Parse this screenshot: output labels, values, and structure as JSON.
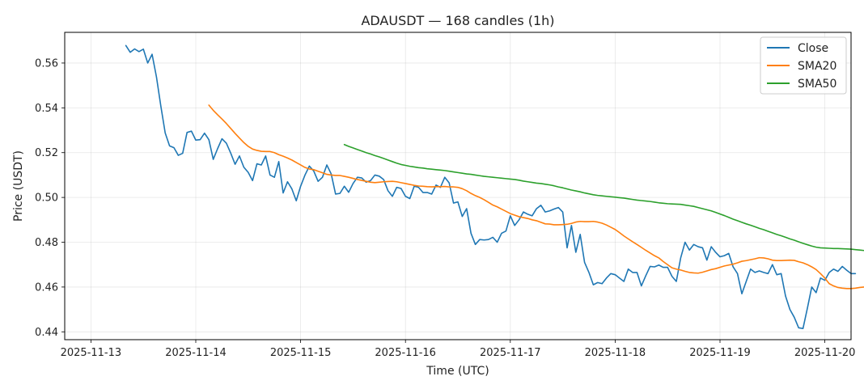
{
  "chart_data": {
    "type": "line",
    "title": "ADAUSDT — 168 candles (1h)",
    "xlabel": "Time (UTC)",
    "ylabel": "Price (USDT)",
    "x_tick_labels": [
      "2025-11-13",
      "2025-11-14",
      "2025-11-15",
      "2025-11-16",
      "2025-11-17",
      "2025-11-18",
      "2025-11-19",
      "2025-11-20"
    ],
    "y_tick_labels": [
      "0.44",
      "0.46",
      "0.48",
      "0.50",
      "0.52",
      "0.54",
      "0.56"
    ],
    "y_ticks": [
      0.44,
      0.46,
      0.48,
      0.5,
      0.52,
      0.54,
      0.56
    ],
    "xlim_days": [
      -0.25,
      7.25
    ],
    "ylim": [
      0.4365,
      0.5737
    ],
    "grid": true,
    "legend_position": "top-right",
    "legend": [
      "Close",
      "SMA20",
      "SMA50"
    ],
    "colors": {
      "Close": "#1f77b4",
      "SMA20": "#ff7f0e",
      "SMA50": "#2ca02c"
    },
    "series": [
      {
        "name": "Close",
        "color": "#1f77b4",
        "start_day": 0.333333,
        "step_hours": 1,
        "values": [
          0.5678,
          0.5648,
          0.5663,
          0.5651,
          0.5662,
          0.56,
          0.5639,
          0.5538,
          0.5408,
          0.5288,
          0.523,
          0.5222,
          0.5188,
          0.5197,
          0.529,
          0.5296,
          0.5256,
          0.5258,
          0.5287,
          0.5258,
          0.517,
          0.5218,
          0.5262,
          0.5242,
          0.5198,
          0.5148,
          0.5185,
          0.5135,
          0.5112,
          0.5075,
          0.515,
          0.5145,
          0.5185,
          0.51,
          0.509,
          0.516,
          0.502,
          0.507,
          0.5038,
          0.4985,
          0.505,
          0.51,
          0.514,
          0.5118,
          0.5072,
          0.509,
          0.5145,
          0.5105,
          0.5015,
          0.5018,
          0.505,
          0.5023,
          0.5062,
          0.509,
          0.5087,
          0.5068,
          0.5075,
          0.51,
          0.5095,
          0.508,
          0.503,
          0.5005,
          0.5045,
          0.504,
          0.5005,
          0.4995,
          0.505,
          0.5045,
          0.5022,
          0.5022,
          0.5015,
          0.5055,
          0.5045,
          0.509,
          0.5065,
          0.4975,
          0.498,
          0.4915,
          0.495,
          0.484,
          0.479,
          0.4812,
          0.481,
          0.4812,
          0.4822,
          0.48,
          0.484,
          0.485,
          0.4918,
          0.4875,
          0.49,
          0.4935,
          0.4925,
          0.4918,
          0.495,
          0.4965,
          0.4935,
          0.494,
          0.4948,
          0.4955,
          0.4935,
          0.4775,
          0.4875,
          0.4755,
          0.4835,
          0.471,
          0.4665,
          0.461,
          0.462,
          0.4615,
          0.464,
          0.466,
          0.4655,
          0.464,
          0.4625,
          0.468,
          0.4665,
          0.4665,
          0.4605,
          0.465,
          0.4692,
          0.469,
          0.4698,
          0.4688,
          0.4688,
          0.4648,
          0.4625,
          0.473,
          0.48,
          0.4765,
          0.479,
          0.478,
          0.4775,
          0.472,
          0.478,
          0.4755,
          0.4735,
          0.474,
          0.475,
          0.469,
          0.466,
          0.457,
          0.4625,
          0.468,
          0.4665,
          0.4672,
          0.4665,
          0.466,
          0.47,
          0.4655,
          0.466,
          0.456,
          0.45,
          0.4465,
          0.4418,
          0.4415,
          0.4505,
          0.46,
          0.4575,
          0.464,
          0.463,
          0.4665,
          0.468,
          0.467,
          0.4692,
          0.4675,
          0.466,
          0.466
        ]
      },
      {
        "name": "SMA20",
        "color": "#ff7f0e",
        "start_day": 1.125,
        "step_hours": 1,
        "values": [
          0.5412,
          0.5389,
          0.5369,
          0.535,
          0.533,
          0.5308,
          0.5286,
          0.5265,
          0.5245,
          0.5228,
          0.5216,
          0.521,
          0.5206,
          0.5205,
          0.5205,
          0.52,
          0.5191,
          0.5184,
          0.5176,
          0.5167,
          0.5156,
          0.5145,
          0.5134,
          0.5127,
          0.5124,
          0.5117,
          0.511,
          0.5103,
          0.51,
          0.5098,
          0.5098,
          0.5094,
          0.509,
          0.5085,
          0.508,
          0.5076,
          0.5072,
          0.5068,
          0.5066,
          0.5068,
          0.507,
          0.5071,
          0.5072,
          0.507,
          0.5066,
          0.5062,
          0.5058,
          0.5054,
          0.5051,
          0.505,
          0.5048,
          0.5047,
          0.5048,
          0.5048,
          0.5049,
          0.5047,
          0.5047,
          0.5045,
          0.5039,
          0.503,
          0.5018,
          0.5008,
          0.5,
          0.499,
          0.4978,
          0.4966,
          0.4958,
          0.4948,
          0.4938,
          0.4928,
          0.4921,
          0.4914,
          0.491,
          0.4906,
          0.49,
          0.4896,
          0.4889,
          0.4882,
          0.4881,
          0.4878,
          0.4878,
          0.4879,
          0.488,
          0.4884,
          0.489,
          0.4893,
          0.4892,
          0.4892,
          0.4893,
          0.489,
          0.4885,
          0.4877,
          0.4867,
          0.4857,
          0.4843,
          0.4828,
          0.4815,
          0.4802,
          0.479,
          0.4777,
          0.4764,
          0.4752,
          0.474,
          0.473,
          0.4714,
          0.47,
          0.4686,
          0.468,
          0.4676,
          0.467,
          0.4665,
          0.4663,
          0.4662,
          0.4666,
          0.4672,
          0.4678,
          0.4682,
          0.4688,
          0.4694,
          0.4698,
          0.4702,
          0.4708,
          0.4715,
          0.4718,
          0.4722,
          0.4726,
          0.4731,
          0.473,
          0.4726,
          0.472,
          0.4718,
          0.4718,
          0.4719,
          0.472,
          0.4719,
          0.4713,
          0.4708,
          0.47,
          0.469,
          0.4678,
          0.466,
          0.464,
          0.4615,
          0.4605,
          0.4598,
          0.4595,
          0.4593,
          0.4593,
          0.4595,
          0.4598,
          0.46,
          0.46,
          0.46,
          0.4602,
          0.4602,
          0.4603,
          0.4603
        ]
      },
      {
        "name": "SMA50",
        "color": "#2ca02c",
        "start_day": 2.416667,
        "step_hours": 1,
        "values": [
          0.5236,
          0.5228,
          0.5221,
          0.5214,
          0.5207,
          0.52,
          0.5194,
          0.5187,
          0.5181,
          0.5174,
          0.5167,
          0.516,
          0.5153,
          0.5147,
          0.5143,
          0.5139,
          0.5136,
          0.5133,
          0.5131,
          0.5128,
          0.5126,
          0.5124,
          0.5122,
          0.512,
          0.5117,
          0.5114,
          0.5111,
          0.5108,
          0.5105,
          0.5103,
          0.51,
          0.5097,
          0.5094,
          0.5092,
          0.509,
          0.5088,
          0.5086,
          0.5084,
          0.5082,
          0.508,
          0.5077,
          0.5073,
          0.507,
          0.5067,
          0.5064,
          0.5062,
          0.5059,
          0.5056,
          0.5052,
          0.5047,
          0.5043,
          0.5038,
          0.5033,
          0.5029,
          0.5025,
          0.502,
          0.5016,
          0.5012,
          0.5009,
          0.5007,
          0.5005,
          0.5003,
          0.5001,
          0.4999,
          0.4997,
          0.4994,
          0.4991,
          0.4988,
          0.4986,
          0.4984,
          0.4982,
          0.4979,
          0.4976,
          0.4974,
          0.4972,
          0.4971,
          0.497,
          0.4969,
          0.4966,
          0.4963,
          0.496,
          0.4955,
          0.495,
          0.4945,
          0.494,
          0.4933,
          0.4926,
          0.4919,
          0.4911,
          0.4903,
          0.4896,
          0.4889,
          0.4882,
          0.4876,
          0.4869,
          0.4862,
          0.4856,
          0.4849,
          0.4842,
          0.4835,
          0.4829,
          0.4822,
          0.4815,
          0.4809,
          0.4802,
          0.4795,
          0.4789,
          0.4783,
          0.4778,
          0.4775,
          0.4774,
          0.4773,
          0.4772,
          0.4772,
          0.4771,
          0.477,
          0.4769,
          0.4767,
          0.4765,
          0.4763,
          0.476,
          0.4757,
          0.4753,
          0.4748,
          0.474,
          0.4735,
          0.473,
          0.4726,
          0.4721,
          0.4717,
          0.4712,
          0.4707,
          0.4702,
          0.4696,
          0.4688,
          0.468,
          0.4672,
          0.4664,
          0.466,
          0.466,
          0.466,
          0.466,
          0.466,
          0.466,
          0.4661,
          0.4661,
          0.4662,
          0.4662,
          0.4662,
          0.4663,
          0.4663,
          0.4664
        ]
      }
    ]
  }
}
